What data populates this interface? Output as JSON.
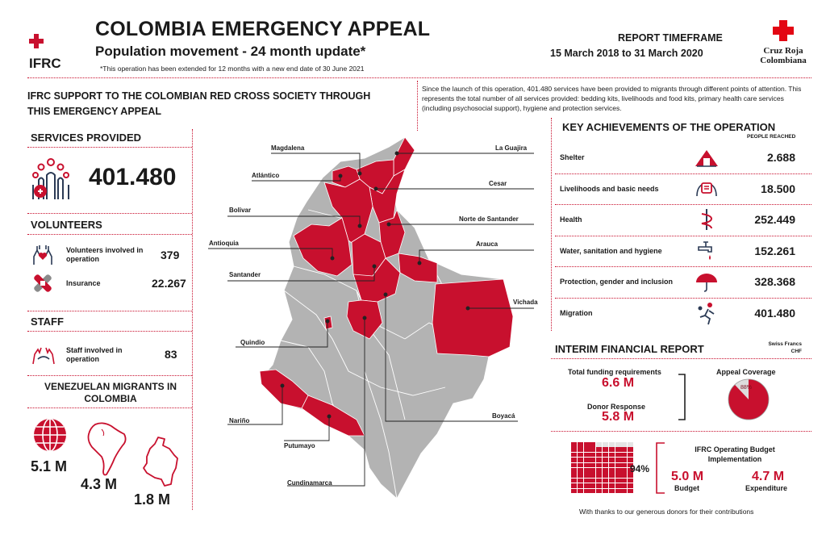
{
  "header": {
    "logo_ifrc": "IFRC",
    "title": "COLOMBIA EMERGENCY APPEAL",
    "subtitle": "Population movement - 24 month update*",
    "footnote": "*This operation has been extended for 12 months with a new end date of 30 June 2021",
    "timeframe_label": "REPORT TIMEFRAME",
    "timeframe_value": "15 March 2018 to 31 March 2020",
    "crc_logo_text_1": "Cruz Roja",
    "crc_logo_text_2": "Colombiana"
  },
  "intro": {
    "heading": "IFRC SUPPORT TO THE COLOMBIAN RED CROSS SOCIETY THROUGH THIS EMERGENCY APPEAL",
    "text": "Since the launch of this operation, 401.480 services have been provided to migrants through different points of attention. This represents the total number of all services provided: bedding kits, livelihoods and food kits, primary health care services (including psychosocial support), hygiene and protection services."
  },
  "services": {
    "heading": "SERVICES PROVIDED",
    "value": "401.480"
  },
  "volunteers": {
    "heading": "VOLUNTEERS",
    "items": [
      {
        "label": "Volunteers involved in operation",
        "value": "379",
        "icon": "volunteer-hands-icon"
      },
      {
        "label": "Insurance",
        "value": "22.267",
        "icon": "bandage-icon"
      }
    ]
  },
  "staff": {
    "heading": "STAFF",
    "items": [
      {
        "label": "Staff involved in operation",
        "value": "83",
        "icon": "staff-hands-icon"
      }
    ]
  },
  "migrants": {
    "heading": "VENEZUELAN MIGRANTS IN COLOMBIA",
    "global": "5.1 M",
    "south_america": "4.3 M",
    "colombia": "1.8 M"
  },
  "map": {
    "labels": {
      "magdalena": "Magdalena",
      "la_guajira": "La Guajira",
      "atlantico": "Atlántico",
      "cesar": "Cesar",
      "bolivar": "Bolivar",
      "norte_santander": "Norte de Santander",
      "antioquia": "Antioquia",
      "arauca": "Arauca",
      "santander": "Santander",
      "vichada": "Vichada",
      "quindio": "Quindio",
      "narino": "Nariño",
      "boyaca": "Boyacá",
      "putumayo": "Putumayo",
      "cundinamarca": "Cundinamarca"
    },
    "colors": {
      "highlight": "#c8102e",
      "base": "#b3b3b3"
    }
  },
  "achievements": {
    "heading": "KEY ACHIEVEMENTS OF THE OPERATION",
    "column_label": "PEOPLE REACHED",
    "items": [
      {
        "label": "Shelter",
        "value": "2.688",
        "icon": "shelter-icon"
      },
      {
        "label": "Livelihoods and basic needs",
        "value": "18.500",
        "icon": "livelihoods-icon"
      },
      {
        "label": "Health",
        "value": "252.449",
        "icon": "health-icon"
      },
      {
        "label": "Water, sanitation and hygiene",
        "value": "152.261",
        "icon": "water-tap-icon"
      },
      {
        "label": "Protection, gender and inclusion",
        "value": "328.368",
        "icon": "umbrella-icon"
      },
      {
        "label": "Migration",
        "value": "401.480",
        "icon": "migration-icon"
      }
    ]
  },
  "financial": {
    "heading": "INTERIM FINANCIAL REPORT",
    "currency": "Swiss Francs CHF",
    "funding_label": "Total funding requirements",
    "funding_value": "6.6 M",
    "donor_label": "Donor Response",
    "donor_value": "5.8 M",
    "coverage_label": "Appeal Coverage",
    "coverage_value": "88%",
    "coverage_fraction": 0.88,
    "budget_heading": "IFRC Operating Budget Implementation",
    "budget_pct": "94%",
    "budget_fraction": 0.94,
    "budget_value": "5.0 M",
    "budget_label": "Budget",
    "expenditure_value": "4.7 M",
    "expenditure_label": "Expenditure",
    "thanks": "With thanks to our generous donors for their contributions"
  },
  "colors": {
    "accent": "#c8102e",
    "grey": "#b3b3b3"
  }
}
